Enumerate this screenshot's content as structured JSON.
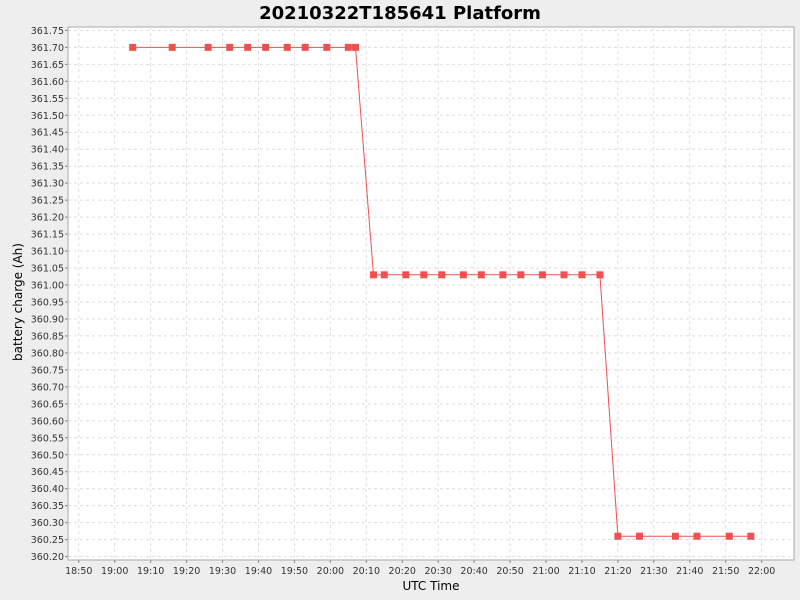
{
  "chart_data": {
    "type": "line",
    "title": "20210322T185641 Platform",
    "xlabel": "UTC Time",
    "ylabel": "battery charge (Ah)",
    "xlim": [
      "18:47",
      "22:09"
    ],
    "ylim": [
      360.19,
      361.76
    ],
    "x_ticks": [
      "18:50",
      "19:00",
      "19:10",
      "19:20",
      "19:30",
      "19:40",
      "19:50",
      "20:00",
      "20:10",
      "20:20",
      "20:30",
      "20:40",
      "20:50",
      "21:00",
      "21:10",
      "21:20",
      "21:30",
      "21:40",
      "21:50",
      "22:00"
    ],
    "y_ticks": [
      "360.20",
      "360.25",
      "360.30",
      "360.35",
      "360.40",
      "360.45",
      "360.50",
      "360.55",
      "360.60",
      "360.65",
      "360.70",
      "360.75",
      "360.80",
      "360.85",
      "360.90",
      "360.95",
      "361.00",
      "361.05",
      "361.10",
      "361.15",
      "361.20",
      "361.25",
      "361.30",
      "361.35",
      "361.40",
      "361.45",
      "361.50",
      "361.55",
      "361.60",
      "361.65",
      "361.70",
      "361.75"
    ],
    "grid": true,
    "series": [
      {
        "color": "#f05050",
        "marker": "square",
        "points": [
          [
            "19:05",
            361.7
          ],
          [
            "19:16",
            361.7
          ],
          [
            "19:26",
            361.7
          ],
          [
            "19:32",
            361.7
          ],
          [
            "19:37",
            361.7
          ],
          [
            "19:42",
            361.7
          ],
          [
            "19:48",
            361.7
          ],
          [
            "19:53",
            361.7
          ],
          [
            "19:59",
            361.7
          ],
          [
            "20:05",
            361.7
          ],
          [
            "20:07",
            361.7
          ],
          [
            "20:12",
            361.03
          ],
          [
            "20:15",
            361.03
          ],
          [
            "20:21",
            361.03
          ],
          [
            "20:26",
            361.03
          ],
          [
            "20:31",
            361.03
          ],
          [
            "20:37",
            361.03
          ],
          [
            "20:42",
            361.03
          ],
          [
            "20:48",
            361.03
          ],
          [
            "20:53",
            361.03
          ],
          [
            "20:59",
            361.03
          ],
          [
            "21:05",
            361.03
          ],
          [
            "21:10",
            361.03
          ],
          [
            "21:15",
            361.03
          ],
          [
            "21:20",
            360.26
          ],
          [
            "21:26",
            360.26
          ],
          [
            "21:36",
            360.26
          ],
          [
            "21:42",
            360.26
          ],
          [
            "21:51",
            360.26
          ],
          [
            "21:57",
            360.26
          ]
        ]
      }
    ]
  }
}
